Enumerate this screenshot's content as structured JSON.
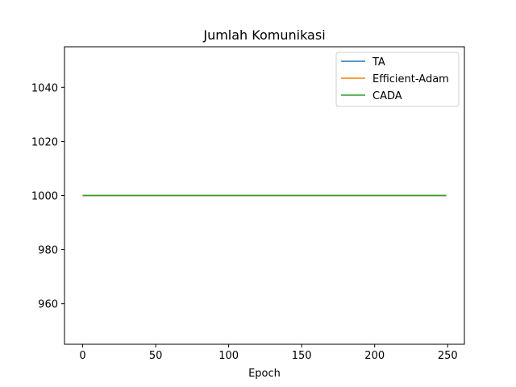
{
  "chart_data": {
    "type": "line",
    "title": "Jumlah Komunikasi",
    "xlabel": "Epoch",
    "ylabel": "",
    "xlim": [
      -12.45,
      261.45
    ],
    "ylim": [
      945,
      1055
    ],
    "xticks": [
      0,
      50,
      100,
      150,
      200,
      250
    ],
    "yticks": [
      960,
      980,
      1000,
      1020,
      1040
    ],
    "grid": false,
    "legend_position": "top-right",
    "series": [
      {
        "name": "TA",
        "color": "#1f77b4",
        "x": [
          0,
          249
        ],
        "y": [
          1000,
          1000
        ]
      },
      {
        "name": "Efficient-Adam",
        "color": "#ff7f0e",
        "x": [
          0,
          249
        ],
        "y": [
          1000,
          1000
        ]
      },
      {
        "name": "CADA",
        "color": "#2ca02c",
        "x": [
          0,
          249
        ],
        "y": [
          1000,
          1000
        ]
      }
    ]
  }
}
